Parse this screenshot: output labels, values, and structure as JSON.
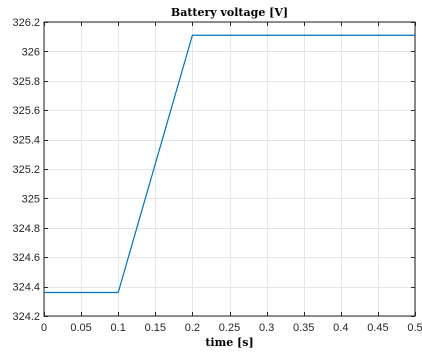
{
  "chart_data": {
    "type": "line",
    "title": "Battery voltage [V]",
    "xlabel": "time [s]",
    "ylabel": "",
    "xlim": [
      0,
      0.5
    ],
    "ylim": [
      324.2,
      326.2
    ],
    "grid": true,
    "xticks": [
      "0",
      "0.05",
      "0.1",
      "0.15",
      "0.2",
      "0.25",
      "0.3",
      "0.35",
      "0.4",
      "0.45",
      "0.5"
    ],
    "xtick_values": [
      0,
      0.05,
      0.1,
      0.15,
      0.2,
      0.25,
      0.3,
      0.35,
      0.4,
      0.45,
      0.5
    ],
    "yticks": [
      "324.2",
      "324.4",
      "324.6",
      "324.8",
      "325",
      "325.2",
      "325.4",
      "325.6",
      "325.8",
      "326",
      "326.2"
    ],
    "ytick_values": [
      324.2,
      324.4,
      324.6,
      324.8,
      325,
      325.2,
      325.4,
      325.6,
      325.8,
      326,
      326.2
    ],
    "series": [
      {
        "color": "#0072BD",
        "x": [
          0,
          0.1,
          0.2,
          0.5
        ],
        "y": [
          324.36,
          324.36,
          326.11,
          326.11
        ]
      }
    ]
  }
}
